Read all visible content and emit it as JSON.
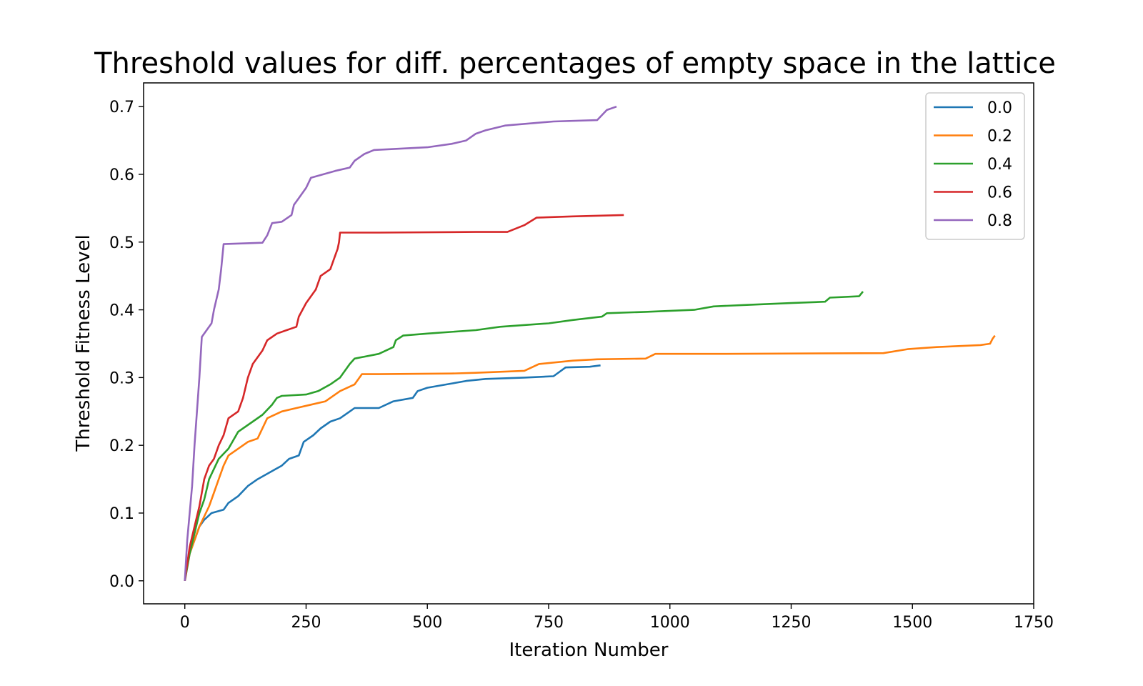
{
  "chart_data": {
    "type": "line",
    "title": "Threshold values for diff. percentages of empty space in the lattice",
    "xlabel": "Iteration Number",
    "ylabel": "Threshold Fitness Level",
    "xlim": [
      -85,
      1750
    ],
    "ylim": [
      -0.034,
      0.735
    ],
    "xticks": [
      0,
      250,
      500,
      750,
      1000,
      1250,
      1500,
      1750
    ],
    "xtick_labels": [
      "0",
      "250",
      "500",
      "750",
      "1000",
      "1250",
      "1500",
      "1750"
    ],
    "yticks": [
      0.0,
      0.1,
      0.2,
      0.3,
      0.4,
      0.5,
      0.6,
      0.7
    ],
    "ytick_labels": [
      "0.0",
      "0.1",
      "0.2",
      "0.3",
      "0.4",
      "0.5",
      "0.6",
      "0.7"
    ],
    "grid": false,
    "legend_position": "top-right",
    "series": [
      {
        "name": "0.0",
        "color": "#1f77b4",
        "points": [
          [
            0,
            0.0
          ],
          [
            5,
            0.02
          ],
          [
            10,
            0.04
          ],
          [
            20,
            0.06
          ],
          [
            30,
            0.08
          ],
          [
            40,
            0.09
          ],
          [
            55,
            0.1
          ],
          [
            80,
            0.105
          ],
          [
            90,
            0.115
          ],
          [
            110,
            0.125
          ],
          [
            130,
            0.14
          ],
          [
            150,
            0.15
          ],
          [
            175,
            0.16
          ],
          [
            200,
            0.17
          ],
          [
            215,
            0.18
          ],
          [
            235,
            0.185
          ],
          [
            245,
            0.205
          ],
          [
            265,
            0.215
          ],
          [
            280,
            0.225
          ],
          [
            300,
            0.235
          ],
          [
            320,
            0.24
          ],
          [
            340,
            0.25
          ],
          [
            350,
            0.255
          ],
          [
            400,
            0.255
          ],
          [
            430,
            0.265
          ],
          [
            470,
            0.27
          ],
          [
            480,
            0.28
          ],
          [
            500,
            0.285
          ],
          [
            540,
            0.29
          ],
          [
            580,
            0.295
          ],
          [
            620,
            0.298
          ],
          [
            700,
            0.3
          ],
          [
            760,
            0.302
          ],
          [
            785,
            0.315
          ],
          [
            835,
            0.316
          ],
          [
            857,
            0.318
          ]
        ]
      },
      {
        "name": "0.2",
        "color": "#ff7f0e",
        "points": [
          [
            0,
            0.0
          ],
          [
            10,
            0.04
          ],
          [
            20,
            0.06
          ],
          [
            30,
            0.08
          ],
          [
            50,
            0.11
          ],
          [
            60,
            0.13
          ],
          [
            70,
            0.15
          ],
          [
            80,
            0.17
          ],
          [
            90,
            0.185
          ],
          [
            110,
            0.195
          ],
          [
            130,
            0.205
          ],
          [
            150,
            0.21
          ],
          [
            170,
            0.24
          ],
          [
            200,
            0.25
          ],
          [
            230,
            0.255
          ],
          [
            260,
            0.26
          ],
          [
            290,
            0.265
          ],
          [
            320,
            0.28
          ],
          [
            350,
            0.29
          ],
          [
            365,
            0.305
          ],
          [
            400,
            0.305
          ],
          [
            550,
            0.306
          ],
          [
            600,
            0.307
          ],
          [
            700,
            0.31
          ],
          [
            730,
            0.32
          ],
          [
            800,
            0.325
          ],
          [
            850,
            0.327
          ],
          [
            950,
            0.328
          ],
          [
            970,
            0.335
          ],
          [
            1100,
            0.335
          ],
          [
            1440,
            0.336
          ],
          [
            1490,
            0.342
          ],
          [
            1550,
            0.345
          ],
          [
            1640,
            0.348
          ],
          [
            1660,
            0.35
          ],
          [
            1665,
            0.357
          ],
          [
            1670,
            0.362
          ]
        ]
      },
      {
        "name": "0.4",
        "color": "#2ca02c",
        "points": [
          [
            0,
            0.0
          ],
          [
            10,
            0.04
          ],
          [
            20,
            0.07
          ],
          [
            30,
            0.1
          ],
          [
            40,
            0.12
          ],
          [
            50,
            0.15
          ],
          [
            70,
            0.18
          ],
          [
            90,
            0.195
          ],
          [
            110,
            0.22
          ],
          [
            140,
            0.235
          ],
          [
            160,
            0.245
          ],
          [
            180,
            0.26
          ],
          [
            190,
            0.27
          ],
          [
            200,
            0.273
          ],
          [
            250,
            0.275
          ],
          [
            275,
            0.28
          ],
          [
            300,
            0.29
          ],
          [
            320,
            0.3
          ],
          [
            330,
            0.31
          ],
          [
            340,
            0.32
          ],
          [
            350,
            0.328
          ],
          [
            400,
            0.335
          ],
          [
            430,
            0.345
          ],
          [
            435,
            0.355
          ],
          [
            450,
            0.362
          ],
          [
            500,
            0.365
          ],
          [
            600,
            0.37
          ],
          [
            650,
            0.375
          ],
          [
            750,
            0.38
          ],
          [
            800,
            0.385
          ],
          [
            860,
            0.39
          ],
          [
            870,
            0.395
          ],
          [
            950,
            0.397
          ],
          [
            1050,
            0.4
          ],
          [
            1090,
            0.405
          ],
          [
            1150,
            0.407
          ],
          [
            1250,
            0.41
          ],
          [
            1320,
            0.412
          ],
          [
            1330,
            0.418
          ],
          [
            1390,
            0.42
          ],
          [
            1398,
            0.427
          ]
        ]
      },
      {
        "name": "0.6",
        "color": "#d62728",
        "points": [
          [
            0,
            0.0
          ],
          [
            10,
            0.05
          ],
          [
            20,
            0.08
          ],
          [
            30,
            0.11
          ],
          [
            40,
            0.15
          ],
          [
            50,
            0.17
          ],
          [
            60,
            0.18
          ],
          [
            70,
            0.2
          ],
          [
            80,
            0.215
          ],
          [
            90,
            0.24
          ],
          [
            110,
            0.25
          ],
          [
            120,
            0.27
          ],
          [
            130,
            0.3
          ],
          [
            140,
            0.32
          ],
          [
            160,
            0.34
          ],
          [
            170,
            0.355
          ],
          [
            190,
            0.365
          ],
          [
            210,
            0.37
          ],
          [
            230,
            0.375
          ],
          [
            235,
            0.39
          ],
          [
            250,
            0.41
          ],
          [
            270,
            0.43
          ],
          [
            280,
            0.45
          ],
          [
            300,
            0.46
          ],
          [
            305,
            0.47
          ],
          [
            310,
            0.48
          ],
          [
            315,
            0.49
          ],
          [
            318,
            0.5
          ],
          [
            320,
            0.514
          ],
          [
            400,
            0.514
          ],
          [
            600,
            0.515
          ],
          [
            665,
            0.515
          ],
          [
            700,
            0.525
          ],
          [
            725,
            0.536
          ],
          [
            800,
            0.538
          ],
          [
            905,
            0.54
          ]
        ]
      },
      {
        "name": "0.8",
        "color": "#9467bd",
        "points": [
          [
            0,
            0.0
          ],
          [
            5,
            0.06
          ],
          [
            10,
            0.1
          ],
          [
            15,
            0.14
          ],
          [
            20,
            0.2
          ],
          [
            25,
            0.25
          ],
          [
            30,
            0.3
          ],
          [
            35,
            0.36
          ],
          [
            45,
            0.37
          ],
          [
            55,
            0.38
          ],
          [
            60,
            0.4
          ],
          [
            70,
            0.43
          ],
          [
            75,
            0.46
          ],
          [
            80,
            0.497
          ],
          [
            160,
            0.499
          ],
          [
            170,
            0.51
          ],
          [
            180,
            0.528
          ],
          [
            200,
            0.53
          ],
          [
            220,
            0.54
          ],
          [
            225,
            0.555
          ],
          [
            235,
            0.565
          ],
          [
            250,
            0.58
          ],
          [
            260,
            0.595
          ],
          [
            310,
            0.605
          ],
          [
            340,
            0.61
          ],
          [
            350,
            0.62
          ],
          [
            370,
            0.63
          ],
          [
            390,
            0.636
          ],
          [
            500,
            0.64
          ],
          [
            550,
            0.645
          ],
          [
            580,
            0.65
          ],
          [
            600,
            0.66
          ],
          [
            620,
            0.665
          ],
          [
            660,
            0.672
          ],
          [
            760,
            0.678
          ],
          [
            850,
            0.68
          ],
          [
            870,
            0.695
          ],
          [
            890,
            0.7
          ]
        ]
      }
    ]
  }
}
